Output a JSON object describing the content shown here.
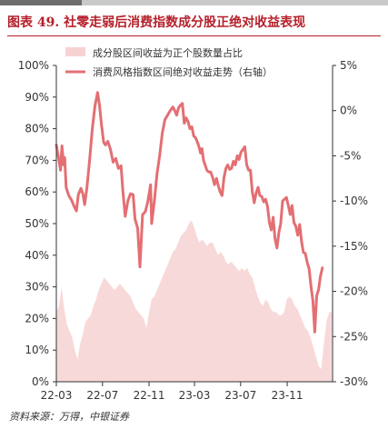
{
  "figure_title": "图表 49. 社零走弱后消费指数成分股正绝对收益表现",
  "source_note": "资料来源：万得，中银证券",
  "colors": {
    "title": "#b51f2a",
    "area": "#f7d2d2",
    "line": "#e36f73",
    "axis": "#333333"
  },
  "chart_data": {
    "type": "line",
    "x_ticks": [
      "22-03",
      "22-07",
      "22-11",
      "23-03",
      "23-07",
      "23-11"
    ],
    "x_tick_dates": [
      "2022-03-01",
      "2022-07-01",
      "2022-11-01",
      "2023-03-01",
      "2023-07-01",
      "2023-11-01"
    ],
    "x_range": [
      "2022-03-01",
      "2024-02-29"
    ],
    "left_axis": {
      "ticks": [
        "0%",
        "10%",
        "20%",
        "30%",
        "40%",
        "50%",
        "60%",
        "70%",
        "80%",
        "90%",
        "100%"
      ],
      "min": 0,
      "max": 100,
      "unit": "%"
    },
    "right_axis": {
      "ticks": [
        "5%",
        "0%",
        "-5%",
        "-10%",
        "-15%",
        "-20%",
        "-25%",
        "-30%"
      ],
      "min": -30,
      "max": 5,
      "unit": "%"
    },
    "legend_position": "top-left",
    "grid": false,
    "series": [
      {
        "name": "成分股区间收益为正个股数量占比",
        "type": "area",
        "axis": "left",
        "color": "#f7d2d2",
        "points": [
          [
            "2022-03-01",
            22
          ],
          [
            "2022-03-08",
            24
          ],
          [
            "2022-03-15",
            30
          ],
          [
            "2022-03-22",
            23
          ],
          [
            "2022-03-29",
            18
          ],
          [
            "2022-04-05",
            16
          ],
          [
            "2022-04-12",
            14
          ],
          [
            "2022-04-19",
            10
          ],
          [
            "2022-04-26",
            7
          ],
          [
            "2022-05-03",
            12
          ],
          [
            "2022-05-10",
            15
          ],
          [
            "2022-05-17",
            19
          ],
          [
            "2022-05-24",
            20
          ],
          [
            "2022-05-31",
            21
          ],
          [
            "2022-06-07",
            24
          ],
          [
            "2022-06-14",
            26
          ],
          [
            "2022-06-21",
            29
          ],
          [
            "2022-06-28",
            31
          ],
          [
            "2022-07-05",
            33
          ],
          [
            "2022-07-12",
            32
          ],
          [
            "2022-07-19",
            31
          ],
          [
            "2022-07-26",
            30
          ],
          [
            "2022-08-02",
            29
          ],
          [
            "2022-08-09",
            30
          ],
          [
            "2022-08-16",
            31
          ],
          [
            "2022-08-23",
            30
          ],
          [
            "2022-08-30",
            29
          ],
          [
            "2022-09-06",
            28
          ],
          [
            "2022-09-13",
            27
          ],
          [
            "2022-09-20",
            25
          ],
          [
            "2022-09-27",
            23
          ],
          [
            "2022-10-04",
            22
          ],
          [
            "2022-10-11",
            21
          ],
          [
            "2022-10-18",
            20
          ],
          [
            "2022-10-25",
            17
          ],
          [
            "2022-11-01",
            22
          ],
          [
            "2022-11-08",
            26
          ],
          [
            "2022-11-15",
            27
          ],
          [
            "2022-11-22",
            29
          ],
          [
            "2022-11-29",
            31
          ],
          [
            "2022-12-06",
            33
          ],
          [
            "2022-12-13",
            35
          ],
          [
            "2022-12-20",
            37
          ],
          [
            "2022-12-27",
            39
          ],
          [
            "2023-01-03",
            41
          ],
          [
            "2023-01-10",
            42
          ],
          [
            "2023-01-17",
            44
          ],
          [
            "2023-01-24",
            46
          ],
          [
            "2023-01-31",
            47
          ],
          [
            "2023-02-07",
            48
          ],
          [
            "2023-02-14",
            50
          ],
          [
            "2023-02-21",
            51
          ],
          [
            "2023-02-28",
            49
          ],
          [
            "2023-03-07",
            46
          ],
          [
            "2023-03-14",
            44
          ],
          [
            "2023-03-21",
            45
          ],
          [
            "2023-03-28",
            44
          ],
          [
            "2023-04-04",
            43
          ],
          [
            "2023-04-11",
            44
          ],
          [
            "2023-04-18",
            44
          ],
          [
            "2023-04-25",
            42
          ],
          [
            "2023-05-02",
            40
          ],
          [
            "2023-05-09",
            41
          ],
          [
            "2023-05-16",
            40
          ],
          [
            "2023-05-23",
            38
          ],
          [
            "2023-05-30",
            37
          ],
          [
            "2023-06-06",
            38
          ],
          [
            "2023-06-13",
            37
          ],
          [
            "2023-06-20",
            36
          ],
          [
            "2023-06-27",
            35
          ],
          [
            "2023-07-04",
            36
          ],
          [
            "2023-07-11",
            35
          ],
          [
            "2023-07-18",
            36
          ],
          [
            "2023-07-25",
            34
          ],
          [
            "2023-08-01",
            33
          ],
          [
            "2023-08-08",
            30
          ],
          [
            "2023-08-15",
            27
          ],
          [
            "2023-08-22",
            25
          ],
          [
            "2023-08-29",
            24
          ],
          [
            "2023-09-05",
            26
          ],
          [
            "2023-09-12",
            25
          ],
          [
            "2023-09-19",
            23
          ],
          [
            "2023-09-26",
            22
          ],
          [
            "2023-10-03",
            22
          ],
          [
            "2023-10-10",
            21
          ],
          [
            "2023-10-17",
            21
          ],
          [
            "2023-10-24",
            22
          ],
          [
            "2023-10-31",
            26
          ],
          [
            "2023-11-07",
            27
          ],
          [
            "2023-11-14",
            26
          ],
          [
            "2023-11-21",
            24
          ],
          [
            "2023-11-28",
            23
          ],
          [
            "2023-12-05",
            21
          ],
          [
            "2023-12-12",
            19
          ],
          [
            "2023-12-19",
            17
          ],
          [
            "2023-12-26",
            16
          ],
          [
            "2024-01-02",
            14
          ],
          [
            "2024-01-09",
            11
          ],
          [
            "2024-01-16",
            8
          ],
          [
            "2024-01-23",
            5
          ],
          [
            "2024-01-30",
            4
          ],
          [
            "2024-02-06",
            12
          ],
          [
            "2024-02-13",
            19
          ],
          [
            "2024-02-20",
            22
          ],
          [
            "2024-02-27",
            22
          ]
        ]
      },
      {
        "name": "消费风格指数区间绝对收益走势（右轴）",
        "type": "line",
        "axis": "right",
        "color": "#e36f73",
        "points": [
          [
            "2022-03-01",
            -3.8
          ],
          [
            "2022-03-08",
            -5.5
          ],
          [
            "2022-03-12",
            -6.6
          ],
          [
            "2022-03-16",
            -3.9
          ],
          [
            "2022-03-20",
            -6.0
          ],
          [
            "2022-03-23",
            -5.2
          ],
          [
            "2022-03-27",
            -8.5
          ],
          [
            "2022-04-03",
            -9.4
          ],
          [
            "2022-04-10",
            -9.9
          ],
          [
            "2022-04-17",
            -10.6
          ],
          [
            "2022-04-23",
            -11.1
          ],
          [
            "2022-04-28",
            -9.3
          ],
          [
            "2022-05-05",
            -8.6
          ],
          [
            "2022-05-10",
            -9.2
          ],
          [
            "2022-05-15",
            -10.4
          ],
          [
            "2022-05-21",
            -8.5
          ],
          [
            "2022-05-28",
            -5.5
          ],
          [
            "2022-06-04",
            -2.0
          ],
          [
            "2022-06-11",
            0.5
          ],
          [
            "2022-06-18",
            2.0
          ],
          [
            "2022-06-23",
            0.6
          ],
          [
            "2022-06-28",
            -1.5
          ],
          [
            "2022-07-04",
            -3.5
          ],
          [
            "2022-07-09",
            -3.8
          ],
          [
            "2022-07-15",
            -3.4
          ],
          [
            "2022-07-22",
            -4.3
          ],
          [
            "2022-07-29",
            -5.7
          ],
          [
            "2022-08-05",
            -5.3
          ],
          [
            "2022-08-12",
            -6.4
          ],
          [
            "2022-08-19",
            -6.1
          ],
          [
            "2022-08-24",
            -9.0
          ],
          [
            "2022-08-30",
            -11.7
          ],
          [
            "2022-09-06",
            -10.0
          ],
          [
            "2022-09-13",
            -9.2
          ],
          [
            "2022-09-20",
            -9.3
          ],
          [
            "2022-09-25",
            -12.0
          ],
          [
            "2022-10-02",
            -13.0
          ],
          [
            "2022-10-08",
            -17.3
          ],
          [
            "2022-10-15",
            -11.5
          ],
          [
            "2022-10-22",
            -11.2
          ],
          [
            "2022-10-29",
            -10.0
          ],
          [
            "2022-11-05",
            -8.2
          ],
          [
            "2022-11-08",
            -12.5
          ],
          [
            "2022-11-15",
            -10.0
          ],
          [
            "2022-11-22",
            -7.0
          ],
          [
            "2022-11-29",
            -5.0
          ],
          [
            "2022-12-06",
            -2.5
          ],
          [
            "2022-12-13",
            -1.0
          ],
          [
            "2022-12-20",
            -0.5
          ],
          [
            "2022-12-27",
            0.0
          ],
          [
            "2023-01-03",
            0.4
          ],
          [
            "2023-01-08",
            0.0
          ],
          [
            "2023-01-13",
            -0.5
          ],
          [
            "2023-01-18",
            0.3
          ],
          [
            "2023-01-23",
            0.6
          ],
          [
            "2023-01-28",
            0.8
          ],
          [
            "2023-02-02",
            -1.4
          ],
          [
            "2023-02-07",
            -0.8
          ],
          [
            "2023-02-12",
            -1.2
          ],
          [
            "2023-02-17",
            -2.0
          ],
          [
            "2023-02-22",
            -1.8
          ],
          [
            "2023-02-27",
            -2.8
          ],
          [
            "2023-03-04",
            -3.0
          ],
          [
            "2023-03-09",
            -3.5
          ],
          [
            "2023-03-13",
            -4.0
          ],
          [
            "2023-03-17",
            -4.7
          ],
          [
            "2023-03-21",
            -4.2
          ],
          [
            "2023-03-25",
            -5.5
          ],
          [
            "2023-03-29",
            -6.0
          ],
          [
            "2023-04-03",
            -6.6
          ],
          [
            "2023-04-08",
            -6.8
          ],
          [
            "2023-04-13",
            -6.8
          ],
          [
            "2023-04-18",
            -7.4
          ],
          [
            "2023-04-23",
            -8.2
          ],
          [
            "2023-04-28",
            -7.5
          ],
          [
            "2023-05-03",
            -8.3
          ],
          [
            "2023-05-08",
            -9.0
          ],
          [
            "2023-05-13",
            -9.4
          ],
          [
            "2023-05-18",
            -7.4
          ],
          [
            "2023-05-23",
            -6.4
          ],
          [
            "2023-05-28",
            -6.0
          ],
          [
            "2023-06-02",
            -6.5
          ],
          [
            "2023-06-07",
            -6.4
          ],
          [
            "2023-06-12",
            -5.6
          ],
          [
            "2023-06-17",
            -6.0
          ],
          [
            "2023-06-22",
            -5.0
          ],
          [
            "2023-06-27",
            -5.4
          ],
          [
            "2023-07-02",
            -4.6
          ],
          [
            "2023-07-07",
            -4.3
          ],
          [
            "2023-07-12",
            -4.0
          ],
          [
            "2023-07-17",
            -6.0
          ],
          [
            "2023-07-22",
            -6.6
          ],
          [
            "2023-07-27",
            -6.6
          ],
          [
            "2023-08-01",
            -9.0
          ],
          [
            "2023-08-06",
            -10.2
          ],
          [
            "2023-08-11",
            -9.1
          ],
          [
            "2023-08-16",
            -8.5
          ],
          [
            "2023-08-21",
            -9.4
          ],
          [
            "2023-08-26",
            -9.5
          ],
          [
            "2023-08-31",
            -10.1
          ],
          [
            "2023-09-05",
            -9.8
          ],
          [
            "2023-09-10",
            -10.6
          ],
          [
            "2023-09-15",
            -12.4
          ],
          [
            "2023-09-20",
            -13.2
          ],
          [
            "2023-09-25",
            -11.8
          ],
          [
            "2023-09-30",
            -14.2
          ],
          [
            "2023-10-05",
            -15.2
          ],
          [
            "2023-10-10",
            -13.5
          ],
          [
            "2023-10-15",
            -12.5
          ],
          [
            "2023-10-20",
            -10.0
          ],
          [
            "2023-10-25",
            -9.8
          ],
          [
            "2023-10-30",
            -9.6
          ],
          [
            "2023-11-04",
            -10.5
          ],
          [
            "2023-11-09",
            -11.5
          ],
          [
            "2023-11-14",
            -10.5
          ],
          [
            "2023-11-19",
            -12.4
          ],
          [
            "2023-11-24",
            -12.8
          ],
          [
            "2023-11-29",
            -13.8
          ],
          [
            "2023-12-04",
            -12.6
          ],
          [
            "2023-12-09",
            -14.5
          ],
          [
            "2023-12-14",
            -15.7
          ],
          [
            "2023-12-19",
            -15.8
          ],
          [
            "2023-12-24",
            -16.8
          ],
          [
            "2023-12-29",
            -17.5
          ],
          [
            "2024-01-03",
            -19.5
          ],
          [
            "2024-01-08",
            -21.0
          ],
          [
            "2024-01-13",
            -24.5
          ],
          [
            "2024-01-18",
            -20.5
          ],
          [
            "2024-01-23",
            -19.8
          ],
          [
            "2024-01-28",
            -18.3
          ],
          [
            "2024-02-02",
            -17.4
          ]
        ]
      }
    ]
  }
}
